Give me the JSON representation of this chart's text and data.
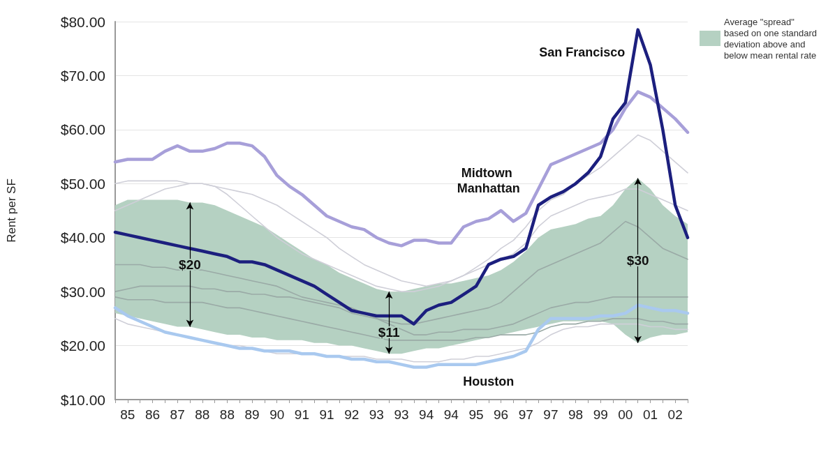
{
  "chart_data": {
    "type": "line",
    "ylabel": "Rent per SF",
    "categories": [
      null,
      "85",
      null,
      "86",
      null,
      "87",
      null,
      "88",
      null,
      "88",
      null,
      "89",
      null,
      "90",
      null,
      "91",
      null,
      "91",
      null,
      "92",
      null,
      "93",
      null,
      "93",
      null,
      "94",
      null,
      "94",
      null,
      "95",
      null,
      "96",
      null,
      "97",
      null,
      "97",
      null,
      "98",
      null,
      "99",
      null,
      "00",
      null,
      "01",
      null,
      "02",
      null
    ],
    "ylim": [
      10,
      80
    ],
    "yticks": [
      {
        "value": 10,
        "label": "$10.00"
      },
      {
        "value": 20,
        "label": "$20.00"
      },
      {
        "value": 30,
        "label": "$30.00"
      },
      {
        "value": 40,
        "label": "$40.00"
      },
      {
        "value": 50,
        "label": "$50.00"
      },
      {
        "value": 60,
        "label": "$60.00"
      },
      {
        "value": 70,
        "label": "$70.00"
      },
      {
        "value": 80,
        "label": "$80.00"
      }
    ],
    "grid": "y",
    "legend": "top right",
    "marker": "none",
    "annotations": [
      "$20",
      "$11",
      "$30"
    ],
    "series": [
      {
        "type": "area",
        "name": "Average \"spread\" based on one standard deviation above and below mean rental rate",
        "color": "#b5d1c2",
        "values": [
          null,
          null,
          null,
          null,
          null,
          null,
          null,
          null,
          null,
          null,
          null,
          null,
          null,
          null,
          null,
          null,
          null,
          null,
          null,
          null,
          null,
          null,
          null,
          null,
          null,
          null,
          null,
          null,
          null,
          null,
          null,
          null,
          null,
          null,
          null,
          null,
          null,
          null,
          null,
          null,
          null,
          null,
          null,
          null,
          null,
          null,
          null
        ],
        "upper": [
          46,
          47,
          47,
          47,
          47,
          47,
          46.5,
          46.5,
          46,
          45,
          44,
          43,
          42,
          40.5,
          39,
          37.5,
          36,
          35,
          33.5,
          32.5,
          31.5,
          30.5,
          30,
          30,
          30.5,
          31,
          31.5,
          31.5,
          32,
          32.5,
          33,
          34,
          35.5,
          37.5,
          40,
          41.5,
          42,
          42.5,
          43.5,
          44,
          46,
          49,
          51,
          49,
          46,
          44,
          42.5
        ],
        "lower": [
          26,
          25.5,
          25,
          24.5,
          24,
          23.5,
          23.5,
          23,
          22.5,
          22,
          22,
          21.5,
          21.5,
          21,
          21,
          21,
          20.5,
          20.5,
          20,
          20,
          19.5,
          19,
          18.5,
          18.5,
          19,
          19.5,
          19.5,
          20,
          20.5,
          21,
          21.5,
          22,
          22.5,
          23,
          23.5,
          24,
          24.5,
          24.5,
          24.5,
          24.5,
          24,
          22,
          20.5,
          21.5,
          22,
          22,
          22.5
        ]
      },
      {
        "color": "#cfcfd8",
        "values": [
          50,
          50.5,
          50.5,
          50.5,
          50.5,
          50.5,
          50,
          50,
          49.5,
          49,
          48.5,
          48,
          47,
          46,
          44.5,
          43,
          41.5,
          40,
          38,
          36.5,
          35,
          34,
          33,
          32,
          31.5,
          31,
          31.5,
          32,
          33,
          34.5,
          36,
          38,
          39.5,
          42,
          45,
          47,
          48,
          50,
          51.5,
          53,
          55,
          57,
          59,
          58,
          56,
          54,
          52
        ]
      },
      {
        "color": "#cfcfd8",
        "values": [
          45,
          46,
          47,
          48,
          49,
          49.5,
          50,
          50,
          49.5,
          48,
          46,
          44,
          42,
          40,
          38.5,
          37,
          36,
          35,
          34,
          33,
          32,
          31,
          30.5,
          30,
          30,
          30.5,
          31,
          32,
          33,
          34,
          35,
          36,
          37,
          39,
          42,
          44,
          45,
          46,
          47,
          47.5,
          48,
          49,
          49,
          48,
          47,
          46,
          45
        ]
      },
      {
        "color": "#9aaaa6",
        "values": [
          35,
          35,
          35,
          34.5,
          34.5,
          34,
          34,
          34,
          33.5,
          33,
          32.5,
          32,
          31.5,
          31,
          30,
          29,
          28.5,
          28,
          27.5,
          27,
          26,
          25,
          24.5,
          24,
          24,
          24.5,
          25,
          25.5,
          26,
          26.5,
          27,
          28,
          30,
          32,
          34,
          35,
          36,
          37,
          38,
          39,
          41,
          43,
          42,
          40,
          38,
          37,
          36
        ]
      },
      {
        "color": "#9aaaa6",
        "values": [
          30,
          30.5,
          31,
          31,
          31,
          31,
          31,
          30.5,
          30.5,
          30,
          30,
          29.5,
          29.5,
          29,
          29,
          28.5,
          28,
          27.5,
          27,
          26,
          25.5,
          25,
          24,
          23,
          22,
          22,
          22.5,
          22.5,
          23,
          23,
          23,
          23.5,
          24,
          25,
          26,
          27,
          27.5,
          28,
          28,
          28.5,
          29,
          29,
          29,
          29,
          29,
          29,
          29
        ]
      },
      {
        "color": "#9aaaa6",
        "values": [
          29,
          28.5,
          28.5,
          28.5,
          28,
          28,
          28,
          28,
          27.5,
          27,
          27,
          26.5,
          26,
          25.5,
          25,
          24.5,
          24,
          23.5,
          23,
          22.5,
          22,
          21.5,
          21,
          21,
          21,
          21,
          21,
          21,
          21,
          21.5,
          21.5,
          22,
          22,
          22,
          22.5,
          23.5,
          24,
          24,
          24.5,
          24.5,
          25,
          25,
          25,
          24.5,
          24.5,
          24,
          24
        ]
      },
      {
        "color": "#cfcfd8",
        "values": [
          25,
          24,
          23.5,
          23,
          22.5,
          22,
          21.5,
          21,
          20.5,
          20,
          20,
          19.5,
          19,
          18.5,
          18.5,
          18.5,
          18.5,
          18,
          18,
          18,
          18,
          17.5,
          17.5,
          17.5,
          17,
          17,
          17,
          17.5,
          17.5,
          18,
          18,
          18.5,
          19,
          19.5,
          20.5,
          22,
          23,
          23.5,
          23.5,
          24,
          24,
          24,
          24,
          23.5,
          23.5,
          23,
          23
        ]
      },
      {
        "name": "Midtown Manhattan",
        "color": "#a79fd9",
        "values": [
          54,
          54.5,
          54.5,
          54.5,
          56,
          57,
          56,
          56,
          56.5,
          57.5,
          57.5,
          57,
          55,
          51.5,
          49.5,
          48,
          46,
          44,
          43,
          42,
          41.5,
          40,
          39,
          38.5,
          39.5,
          39.5,
          39,
          39,
          42,
          43,
          43.5,
          45,
          43,
          44.5,
          49,
          53.5,
          54.5,
          55.5,
          56.5,
          57.5,
          60,
          64,
          67,
          66,
          64,
          62,
          59.5
        ]
      },
      {
        "name": "San Francisco",
        "color": "#1c1f7e",
        "values": [
          41,
          40.5,
          40,
          39.5,
          39,
          38.5,
          38,
          37.5,
          37,
          36.5,
          35.5,
          35.5,
          35,
          34,
          33,
          32,
          31,
          29.5,
          28,
          26.5,
          26,
          25.5,
          25.5,
          25.5,
          24,
          26.5,
          27.5,
          28,
          29.5,
          31,
          35,
          36,
          36.5,
          38,
          46,
          47.5,
          48.5,
          50,
          52,
          55,
          62,
          65,
          78.5,
          72,
          60,
          46,
          40
        ]
      },
      {
        "name": "Houston",
        "color": "#a9c9ef",
        "values": [
          27,
          25.5,
          24.5,
          23.5,
          22.5,
          22,
          21.5,
          21,
          20.5,
          20,
          19.5,
          19.5,
          19,
          19,
          19,
          18.5,
          18.5,
          18,
          18,
          17.5,
          17.5,
          17,
          17,
          16.5,
          16,
          16,
          16.5,
          16.5,
          16.5,
          16.5,
          17,
          17.5,
          18,
          19,
          23,
          25,
          25,
          25,
          25,
          25.5,
          25.5,
          26,
          27.5,
          27,
          26.5,
          26.5,
          26
        ]
      }
    ]
  }
}
